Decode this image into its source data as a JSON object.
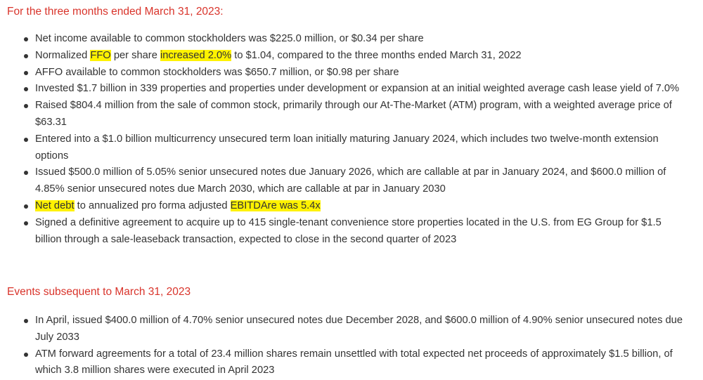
{
  "section1": {
    "heading": "For the three months ended March 31, 2023:",
    "items": [
      {
        "text": "Net income available to common stockholders was $225.0 million, or $0.34 per share"
      },
      {
        "p0": "Normalized ",
        "h0": "FFO",
        "p1": " per share ",
        "h1": "increased 2.0%",
        "p2": " to $1.04, compared to the three months ended March 31, 2022"
      },
      {
        "text": "AFFO available to common stockholders was $650.7 million, or $0.98 per share"
      },
      {
        "text": "Invested $1.7 billion in 339 properties and properties under development or expansion at an initial weighted average cash lease yield of 7.0%"
      },
      {
        "text": "Raised $804.4 million from the sale of common stock, primarily through our At-The-Market (ATM) program, with a weighted average price of $63.31"
      },
      {
        "text": "Entered into a $1.0 billion multicurrency unsecured term loan initially maturing January 2024, which includes two twelve-month extension options"
      },
      {
        "text": "Issued $500.0 million of 5.05% senior unsecured notes due January 2026, which are callable at par in January 2024, and $600.0 million of 4.85% senior unsecured notes due March 2030, which are callable at par in January 2030"
      },
      {
        "h0": "Net debt",
        "p1": " to annualized pro forma adjusted ",
        "h1": "EBITDAre was 5.4x"
      },
      {
        "text": "Signed a definitive agreement to acquire up to 415 single-tenant convenience store properties located in the U.S. from EG Group for $1.5 billion through a sale-leaseback transaction, expected to close in the second quarter of 2023"
      }
    ]
  },
  "section2": {
    "heading": "Events subsequent to March 31, 2023",
    "items": [
      {
        "text": "In April, issued $400.0 million of 4.70% senior unsecured notes due December 2028, and $600.0 million of 4.90% senior unsecured notes due July 2033"
      },
      {
        "text": "ATM forward agreements for a total of 23.4 million shares remain unsettled with total expected net proceeds of approximately $1.5 billion, of which 3.8 million shares were executed in April 2023"
      }
    ]
  },
  "colors": {
    "heading": "#d9342b",
    "body_text": "#333333",
    "highlight": "#fff200"
  }
}
